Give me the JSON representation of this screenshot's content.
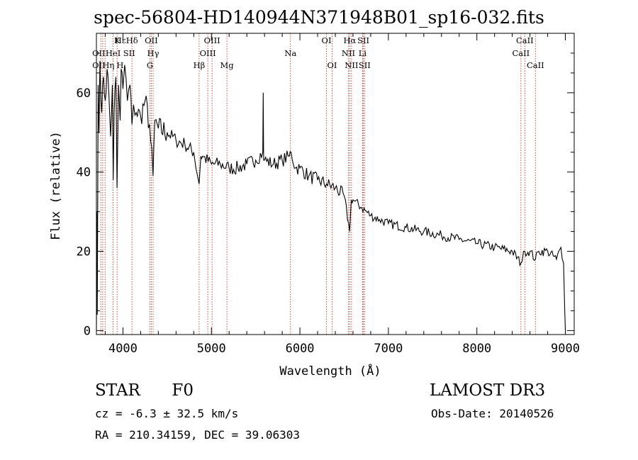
{
  "chart_data": {
    "type": "line",
    "title": "spec-56804-HD140944N371948B01_sp16-032.fits",
    "xlabel": "Wavelength (Å)",
    "ylabel": "Flux (relative)",
    "xlim": [
      3700,
      9100
    ],
    "ylim": [
      -1,
      75
    ],
    "xticks": [
      4000,
      5000,
      6000,
      7000,
      8000,
      9000
    ],
    "yticks": [
      0,
      20,
      40,
      60
    ],
    "series": [
      {
        "name": "Flux",
        "x": [
          3700,
          3705,
          3710,
          3720,
          3730,
          3740,
          3760,
          3780,
          3800,
          3820,
          3840,
          3860,
          3880,
          3890,
          3900,
          3920,
          3933,
          3950,
          3968,
          3980,
          4000,
          4020,
          4050,
          4080,
          4101,
          4120,
          4150,
          4200,
          4250,
          4300,
          4340,
          4360,
          4400,
          4500,
          4600,
          4700,
          4800,
          4861,
          4880,
          4900,
          5000,
          5100,
          5200,
          5300,
          5400,
          5500,
          5580,
          5585,
          5590,
          5600,
          5700,
          5800,
          5880,
          5900,
          5950,
          6000,
          6100,
          6200,
          6300,
          6400,
          6500,
          6563,
          6580,
          6600,
          6700,
          6800,
          6900,
          7000,
          7200,
          7400,
          7600,
          7800,
          8000,
          8200,
          8400,
          8498,
          8542,
          8600,
          8662,
          8700,
          8800,
          8900,
          8950,
          8980,
          9000
        ],
        "y": [
          0,
          30,
          4,
          62,
          50,
          68,
          55,
          64,
          58,
          66,
          60,
          49,
          62,
          38,
          55,
          64,
          36,
          62,
          53,
          66,
          61,
          67,
          58,
          62,
          52,
          57,
          55,
          54,
          58,
          52,
          39,
          53,
          51,
          50,
          48,
          47,
          45,
          37,
          44,
          44,
          42,
          42,
          41,
          41,
          42,
          43,
          45,
          60,
          43,
          43,
          42,
          43,
          44,
          45,
          41,
          41,
          39,
          38,
          37,
          36,
          34,
          25,
          33,
          33,
          31,
          29,
          28,
          27,
          26,
          25,
          24,
          23,
          22,
          21,
          20,
          17,
          20,
          20,
          18,
          20,
          20,
          18,
          21,
          17,
          0
        ]
      }
    ],
    "lines_row1": [
      {
        "label": "Hε",
        "x": 3970
      },
      {
        "label": "K",
        "x": 3934
      },
      {
        "label": "Hδ",
        "x": 4102
      },
      {
        "label": "OII",
        "x": 4320
      },
      {
        "label": "OIII",
        "x": 5007
      },
      {
        "label": "OI",
        "x": 6300
      },
      {
        "label": "Hα",
        "x": 6563
      },
      {
        "label": "SII",
        "x": 6717
      },
      {
        "label": "CaII",
        "x": 8542
      }
    ],
    "lines_row2": [
      {
        "label": "OII",
        "x": 3727
      },
      {
        "label": "HeI",
        "x": 3889
      },
      {
        "label": "SII",
        "x": 4070
      },
      {
        "label": "Hγ",
        "x": 4341
      },
      {
        "label": "OIII",
        "x": 4959
      },
      {
        "label": "Na",
        "x": 5893
      },
      {
        "label": "NII",
        "x": 6548
      },
      {
        "label": "Li",
        "x": 6708
      },
      {
        "label": "CaII",
        "x": 8498
      }
    ],
    "lines_row3": [
      {
        "label": "OII",
        "x": 3727
      },
      {
        "label": "Hη",
        "x": 3835
      },
      {
        "label": "H",
        "x": 3968
      },
      {
        "label": "G",
        "x": 4305
      },
      {
        "label": "Hβ",
        "x": 4861
      },
      {
        "label": "Mg",
        "x": 5175
      },
      {
        "label": "OI",
        "x": 6364
      },
      {
        "label": "NII",
        "x": 6583
      },
      {
        "label": "SII",
        "x": 6731
      },
      {
        "label": "CaII",
        "x": 8662
      }
    ],
    "extra_marker_lines": [
      3750,
      3771,
      3798,
      3889,
      3934,
      4102,
      4305,
      4320,
      4341,
      4861,
      4959,
      5007,
      5175,
      5893,
      6300,
      6364,
      6548,
      6563,
      6583,
      6708,
      6717,
      6731,
      8498,
      8542,
      8662
    ],
    "grid": false,
    "legend": "none"
  },
  "info": {
    "object_class": "STAR",
    "subclass": "F0",
    "survey": "LAMOST DR3",
    "redshift_text": "cz = -6.3 ± 32.5 km/s",
    "obs_date_text": "Obs-Date: 20140526",
    "radec_text": "RA = 210.34159, DEC =  39.06303"
  },
  "colors": {
    "spectrum": "#000000",
    "marker_lines": "#c0392b",
    "axes": "#000000"
  }
}
